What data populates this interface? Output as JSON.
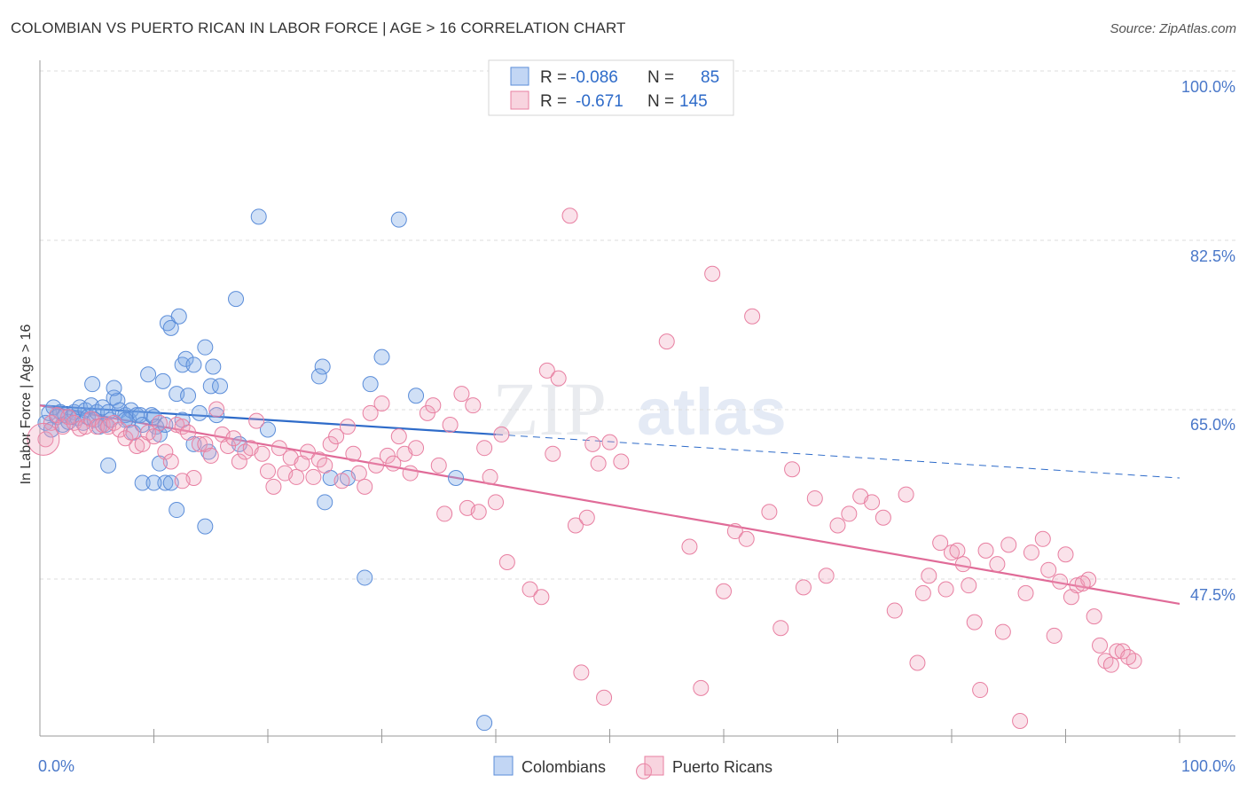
{
  "title": "COLOMBIAN VS PUERTO RICAN IN LABOR FORCE | AGE > 16 CORRELATION CHART",
  "source": "Source: ZipAtlas.com",
  "watermark": {
    "zip": "ZIP",
    "atlas": "atlas"
  },
  "colors": {
    "blue": "#5b8dd9",
    "blue_fill": "rgba(120,165,230,0.35)",
    "blue_line": "#2e6bc9",
    "pink": "#e87fa1",
    "pink_fill": "rgba(240,160,185,0.30)",
    "pink_line": "#e06b98",
    "tick": "#4a78c9",
    "grid": "#dddddd"
  },
  "legend": {
    "r_label": "R =",
    "n_label": "N =",
    "rows": [
      {
        "r": "-0.086",
        "n": "85"
      },
      {
        "r": "-0.671",
        "n": "145"
      }
    ]
  },
  "bottom_legend": [
    "Colombians",
    "Puerto Ricans"
  ],
  "chart_data": {
    "type": "scatter",
    "ylabel": "In Labor Force | Age > 16",
    "xlabel": "",
    "x_tick_labels": [
      "0.0%",
      "100.0%"
    ],
    "y_tick_labels": [
      "100.0%",
      "82.5%",
      "65.0%",
      "47.5%"
    ],
    "xlim": [
      0,
      100
    ],
    "ylim": [
      30.5,
      102.5
    ],
    "y_ticks": [
      100,
      82.5,
      65,
      47.5
    ],
    "series": [
      {
        "name": "Colombians",
        "r": -0.086,
        "n": 85,
        "trend": {
          "solid": [
            [
              0,
              67.0
            ],
            [
              40,
              64.0
            ]
          ],
          "dashed": [
            [
              40,
              64.0
            ],
            [
              100,
              59.5
            ]
          ]
        },
        "points": [
          [
            0.5,
            65.2
          ],
          [
            0.8,
            66.2
          ],
          [
            1.0,
            64.5
          ],
          [
            1.2,
            66.8
          ],
          [
            1.5,
            65.8
          ],
          [
            1.8,
            66.3
          ],
          [
            2.0,
            65.0
          ],
          [
            2.2,
            66.0
          ],
          [
            2.5,
            65.3
          ],
          [
            2.8,
            65.8
          ],
          [
            3.0,
            66.3
          ],
          [
            3.3,
            65.7
          ],
          [
            3.5,
            66.8
          ],
          [
            3.8,
            65.2
          ],
          [
            4.0,
            66.5
          ],
          [
            4.2,
            65.8
          ],
          [
            4.5,
            67.0
          ],
          [
            4.8,
            65.5
          ],
          [
            5.0,
            66.3
          ],
          [
            4.6,
            69.2
          ],
          [
            5.2,
            64.8
          ],
          [
            5.5,
            66.8
          ],
          [
            5.8,
            65.0
          ],
          [
            6.0,
            66.3
          ],
          [
            6.2,
            65.5
          ],
          [
            6.5,
            67.8
          ],
          [
            6.8,
            67.5
          ],
          [
            6.5,
            68.8
          ],
          [
            7.0,
            66.5
          ],
          [
            7.5,
            66.0
          ],
          [
            7.8,
            65.5
          ],
          [
            8.0,
            66.5
          ],
          [
            8.2,
            64.2
          ],
          [
            8.5,
            66.0
          ],
          [
            8.8,
            66.0
          ],
          [
            9.0,
            65.0
          ],
          [
            9.5,
            70.2
          ],
          [
            9.8,
            66.0
          ],
          [
            10.0,
            65.8
          ],
          [
            10.2,
            64.8
          ],
          [
            10.5,
            64.0
          ],
          [
            10.8,
            69.5
          ],
          [
            11.0,
            65.0
          ],
          [
            11.2,
            75.5
          ],
          [
            11.5,
            75.0
          ],
          [
            12.0,
            68.2
          ],
          [
            12.2,
            76.2
          ],
          [
            12.5,
            71.2
          ],
          [
            12.8,
            71.8
          ],
          [
            13.0,
            68.0
          ],
          [
            13.5,
            71.2
          ],
          [
            14.0,
            66.2
          ],
          [
            14.5,
            73.0
          ],
          [
            14.8,
            62.2
          ],
          [
            15.0,
            69.0
          ],
          [
            15.2,
            71.0
          ],
          [
            15.5,
            66.0
          ],
          [
            15.8,
            69.0
          ],
          [
            17.5,
            63.0
          ],
          [
            17.2,
            78.0
          ],
          [
            19.2,
            86.5
          ],
          [
            25.0,
            57.0
          ],
          [
            25.5,
            59.5
          ],
          [
            24.8,
            71.0
          ],
          [
            24.5,
            70.0
          ],
          [
            27.0,
            59.5
          ],
          [
            29.0,
            69.2
          ],
          [
            30.0,
            72.0
          ],
          [
            31.5,
            86.2
          ],
          [
            36.5,
            59.5
          ],
          [
            33.0,
            68.0
          ],
          [
            28.5,
            49.2
          ],
          [
            39.0,
            34.2
          ],
          [
            9.0,
            59.0
          ],
          [
            10.5,
            61.0
          ],
          [
            11.0,
            59.0
          ],
          [
            11.5,
            59.0
          ],
          [
            12.0,
            56.2
          ],
          [
            10.0,
            59.0
          ],
          [
            14.5,
            54.5
          ],
          [
            13.5,
            63.0
          ],
          [
            6.0,
            60.8
          ],
          [
            7.5,
            65.5
          ],
          [
            12.5,
            65.5
          ],
          [
            20.0,
            64.5
          ]
        ]
      },
      {
        "name": "Puerto Ricans",
        "r": -0.671,
        "n": 145,
        "trend": {
          "solid": [
            [
              0,
              67.0
            ],
            [
              100,
              46.5
            ]
          ]
        },
        "points": [
          [
            0.5,
            63.5
          ],
          [
            1.0,
            65.2
          ],
          [
            1.5,
            66.0
          ],
          [
            2.0,
            64.8
          ],
          [
            2.5,
            65.8
          ],
          [
            3.0,
            65.2
          ],
          [
            3.5,
            64.6
          ],
          [
            4.0,
            64.8
          ],
          [
            4.5,
            65.6
          ],
          [
            5.0,
            64.8
          ],
          [
            5.5,
            65.0
          ],
          [
            6.0,
            64.8
          ],
          [
            6.5,
            65.2
          ],
          [
            7.0,
            64.5
          ],
          [
            7.5,
            63.6
          ],
          [
            8.0,
            64.2
          ],
          [
            8.5,
            62.8
          ],
          [
            9.0,
            63.0
          ],
          [
            9.5,
            64.2
          ],
          [
            10.0,
            63.8
          ],
          [
            10.5,
            65.2
          ],
          [
            11.0,
            62.2
          ],
          [
            11.5,
            61.2
          ],
          [
            12.0,
            65.0
          ],
          [
            12.5,
            64.8
          ],
          [
            13.0,
            64.2
          ],
          [
            13.5,
            59.5
          ],
          [
            14.0,
            63.0
          ],
          [
            14.5,
            63.0
          ],
          [
            15.0,
            61.8
          ],
          [
            15.5,
            66.6
          ],
          [
            16.0,
            64.0
          ],
          [
            16.5,
            62.8
          ],
          [
            17.0,
            63.6
          ],
          [
            17.5,
            61.2
          ],
          [
            18.0,
            62.2
          ],
          [
            18.5,
            62.6
          ],
          [
            19.0,
            65.4
          ],
          [
            19.5,
            62.0
          ],
          [
            20.0,
            60.2
          ],
          [
            20.5,
            58.6
          ],
          [
            21.0,
            62.6
          ],
          [
            21.5,
            60.0
          ],
          [
            22.0,
            61.6
          ],
          [
            22.5,
            59.6
          ],
          [
            23.0,
            61.0
          ],
          [
            23.5,
            62.2
          ],
          [
            24.0,
            59.6
          ],
          [
            24.5,
            61.4
          ],
          [
            25.0,
            60.8
          ],
          [
            25.5,
            63.0
          ],
          [
            26.0,
            63.8
          ],
          [
            26.5,
            59.2
          ],
          [
            27.0,
            64.8
          ],
          [
            27.5,
            62.0
          ],
          [
            28.0,
            60.0
          ],
          [
            28.5,
            58.6
          ],
          [
            29.0,
            66.2
          ],
          [
            29.5,
            60.8
          ],
          [
            30.0,
            67.2
          ],
          [
            30.5,
            61.8
          ],
          [
            31.0,
            61.0
          ],
          [
            31.5,
            63.8
          ],
          [
            32.0,
            62.0
          ],
          [
            32.5,
            60.0
          ],
          [
            33.0,
            62.6
          ],
          [
            34.0,
            66.2
          ],
          [
            34.5,
            67.0
          ],
          [
            35.0,
            60.8
          ],
          [
            35.5,
            55.8
          ],
          [
            36.0,
            65.0
          ],
          [
            37.0,
            68.2
          ],
          [
            37.5,
            56.4
          ],
          [
            38.0,
            67.0
          ],
          [
            38.5,
            56.0
          ],
          [
            39.0,
            62.6
          ],
          [
            39.5,
            59.6
          ],
          [
            40.0,
            57.0
          ],
          [
            40.5,
            64.0
          ],
          [
            41.0,
            50.8
          ],
          [
            43.0,
            48.0
          ],
          [
            44.0,
            47.2
          ],
          [
            44.5,
            70.6
          ],
          [
            45.0,
            62.0
          ],
          [
            45.5,
            69.8
          ],
          [
            46.5,
            86.6
          ],
          [
            47.0,
            54.6
          ],
          [
            48.0,
            55.4
          ],
          [
            47.5,
            39.4
          ],
          [
            48.5,
            63.0
          ],
          [
            49.0,
            61.0
          ],
          [
            49.5,
            36.8
          ],
          [
            50.0,
            63.2
          ],
          [
            51.0,
            61.2
          ],
          [
            53.0,
            29.2
          ],
          [
            55.0,
            73.6
          ],
          [
            57.0,
            52.4
          ],
          [
            58.0,
            37.8
          ],
          [
            59.0,
            80.6
          ],
          [
            60.0,
            47.8
          ],
          [
            61.0,
            54.0
          ],
          [
            62.0,
            53.2
          ],
          [
            62.5,
            76.2
          ],
          [
            64.0,
            56.0
          ],
          [
            65.0,
            44.0
          ],
          [
            66.0,
            60.4
          ],
          [
            67.0,
            48.2
          ],
          [
            68.0,
            57.4
          ],
          [
            69.0,
            49.4
          ],
          [
            70.0,
            54.6
          ],
          [
            71.0,
            55.8
          ],
          [
            72.0,
            57.6
          ],
          [
            73.0,
            57.0
          ],
          [
            74.0,
            55.4
          ],
          [
            75.0,
            45.8
          ],
          [
            76.0,
            57.8
          ],
          [
            77.0,
            40.4
          ],
          [
            78.0,
            49.4
          ],
          [
            79.0,
            52.8
          ],
          [
            80.0,
            51.8
          ],
          [
            81.0,
            50.6
          ],
          [
            81.5,
            48.4
          ],
          [
            82.0,
            44.6
          ],
          [
            82.5,
            37.6
          ],
          [
            83.0,
            52.0
          ],
          [
            84.0,
            50.6
          ],
          [
            85.0,
            52.6
          ],
          [
            86.0,
            34.4
          ],
          [
            86.5,
            47.6
          ],
          [
            87.0,
            51.8
          ],
          [
            88.0,
            53.2
          ],
          [
            88.5,
            50.0
          ],
          [
            89.0,
            43.2
          ],
          [
            89.5,
            48.8
          ],
          [
            90.0,
            51.6
          ],
          [
            90.5,
            47.2
          ],
          [
            91.0,
            48.4
          ],
          [
            92.0,
            49.0
          ],
          [
            92.5,
            45.2
          ],
          [
            93.0,
            42.2
          ],
          [
            93.5,
            40.6
          ],
          [
            94.0,
            40.2
          ],
          [
            94.5,
            41.6
          ],
          [
            95.0,
            41.6
          ],
          [
            96.0,
            40.6
          ],
          [
            84.5,
            43.6
          ],
          [
            80.5,
            52.0
          ],
          [
            77.5,
            47.6
          ],
          [
            79.5,
            48.0
          ],
          [
            95.5,
            41.0
          ],
          [
            91.5,
            48.6
          ],
          [
            12.5,
            59.2
          ]
        ]
      }
    ]
  }
}
